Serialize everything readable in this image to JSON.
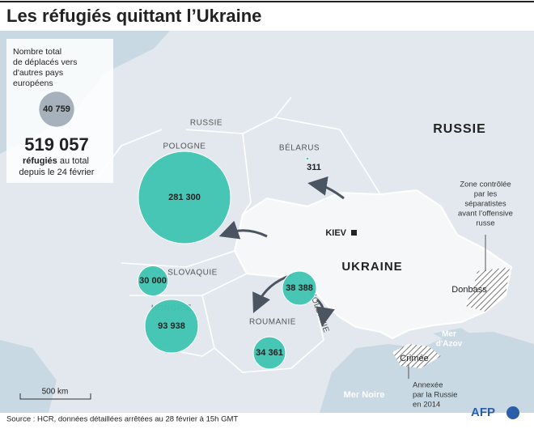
{
  "title": "Les réfugiés quittant l’Ukraine",
  "legend": {
    "lines": [
      "Nombre total",
      "de déplacés vers",
      "d'autres pays",
      "européens"
    ],
    "sample": {
      "value": 40759,
      "label": "40 759"
    }
  },
  "total": {
    "value": 519057,
    "label": "519 057",
    "unit": "réfugiés",
    "text1": "au total",
    "text2": "depuis le 24 février"
  },
  "bubbles": [
    {
      "country": "POLOGNE",
      "value": 281300,
      "label": "281 300"
    },
    {
      "country": "BÉLARUS",
      "value": 311,
      "label": "311"
    },
    {
      "country": "SLOVAQUIE",
      "value": 30000,
      "label": "30 000"
    },
    {
      "country": "HONGRIE",
      "value": 93938,
      "label": "93 938"
    },
    {
      "country": "ROUMANIE",
      "value": 34361,
      "label": "34 361"
    },
    {
      "country": "MOLDAVIE",
      "value": 38388,
      "label": "38 388"
    }
  ],
  "places": {
    "russie_small": "RUSSIE",
    "russie": "RUSSIE",
    "ukraine": "UKRAINE",
    "kiev": "KIEV",
    "donbass": "Donbass",
    "crimee": "Crimée",
    "azov": [
      "Mer",
      "d'Azov"
    ],
    "mer_noire": "Mer Noire"
  },
  "annotations": {
    "zone": [
      "Zone contrôlée",
      "par les",
      "séparatistes",
      "avant l’offensive",
      "russe"
    ],
    "annexee": [
      "Annexée",
      "par la Russie",
      "en 2014"
    ]
  },
  "scale": "500 km",
  "source": "Source : HCR, données détaillées arrêtées au 28 février à 15h GMT",
  "logo": "AFP"
}
